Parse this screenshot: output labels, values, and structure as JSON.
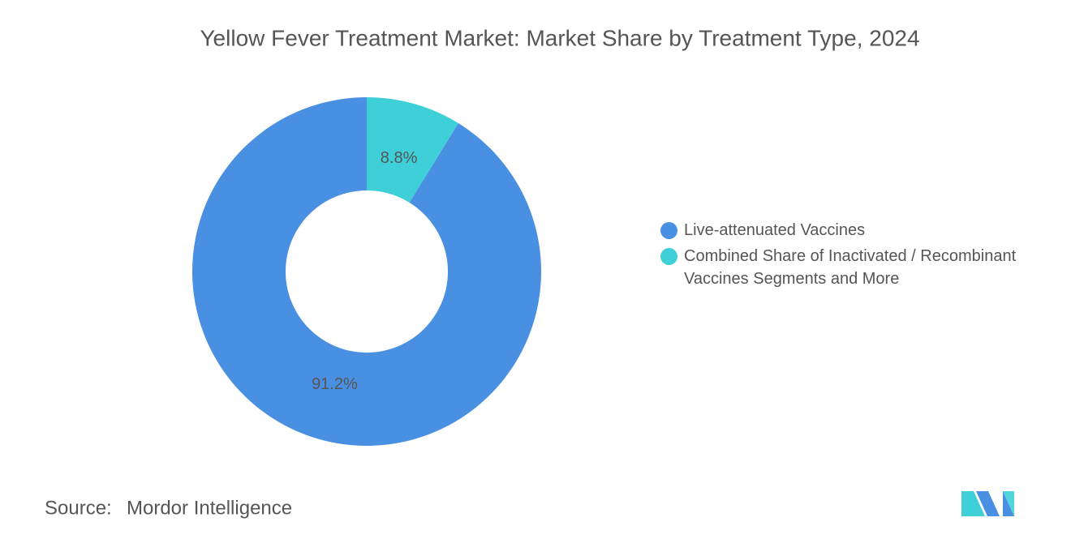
{
  "chart_data": {
    "type": "donut",
    "title": "Yellow Fever Treatment Market: Market Share by Treatment Type, 2024",
    "series": [
      {
        "name": "Live-attenuated Vaccines",
        "color": "#4a90e2",
        "values": [
          91.2
        ],
        "value_labels": [
          "91.2%"
        ]
      },
      {
        "name": "Combined Share of Inactivated / Recombinant Vaccines Segments and More",
        "color": "#3ecfd8",
        "values": [
          8.8
        ],
        "value_labels": [
          "8.8%"
        ]
      }
    ],
    "legend": "right",
    "source_label": "Source:",
    "source": "Mordor Intelligence"
  }
}
